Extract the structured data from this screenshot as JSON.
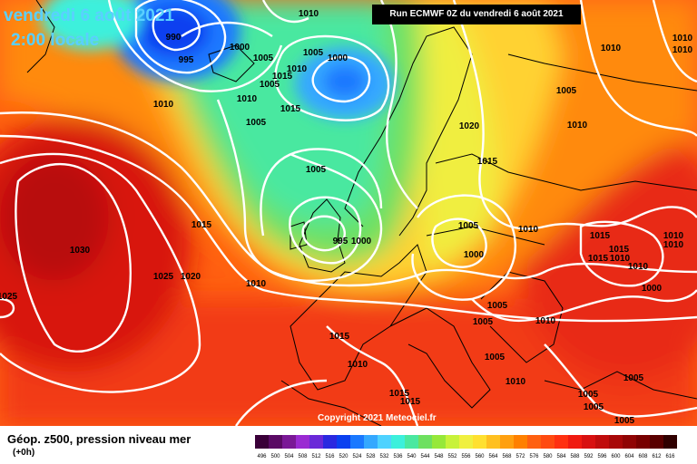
{
  "header": {
    "date": "vendredi 6 août 2021",
    "time": "2:00 locale",
    "run": "Run ECMWF 0Z du vendredi 6 août 2021"
  },
  "copyright": "Copyright 2021 Meteociel.fr",
  "legend": {
    "title": "Géop. z500, pression niveau mer",
    "sub": "(+0h)",
    "ticks": [
      "496",
      "500",
      "504",
      "508",
      "512",
      "516",
      "520",
      "524",
      "528",
      "532",
      "536",
      "540",
      "544",
      "548",
      "552",
      "556",
      "560",
      "564",
      "568",
      "572",
      "576",
      "580",
      "584",
      "588",
      "592",
      "596",
      "600",
      "604",
      "608",
      "612",
      "616"
    ],
    "colors": [
      "#3a0038",
      "#5a0a64",
      "#7a1896",
      "#9a2ad2",
      "#6a28d8",
      "#2a28e0",
      "#0a40f0",
      "#1a78ff",
      "#34a8ff",
      "#4ed2ff",
      "#3cf0dc",
      "#4ae8a0",
      "#6ee060",
      "#96e83a",
      "#c8f23a",
      "#f0f040",
      "#ffe030",
      "#ffc020",
      "#ffa010",
      "#ff8000",
      "#ff6010",
      "#ff4a10",
      "#ff3010",
      "#f01a10",
      "#d81010",
      "#c00c0c",
      "#a80808",
      "#900404",
      "#780000",
      "#5a0000",
      "#300000"
    ]
  },
  "isobars": [
    {
      "label": "1010"
    },
    {
      "label": "990"
    },
    {
      "label": "995"
    },
    {
      "label": "1000"
    },
    {
      "label": "1005"
    },
    {
      "label": "1015"
    },
    {
      "label": "1000"
    },
    {
      "label": "1005"
    },
    {
      "label": "1010"
    },
    {
      "label": "1010"
    },
    {
      "label": "1005"
    },
    {
      "label": "1010"
    },
    {
      "label": "1015"
    },
    {
      "label": "1020"
    },
    {
      "label": "1005"
    },
    {
      "label": "1015"
    },
    {
      "label": "995"
    },
    {
      "label": "1000"
    },
    {
      "label": "1005"
    },
    {
      "label": "1000"
    },
    {
      "label": "1010"
    },
    {
      "label": "1030"
    },
    {
      "label": "1025"
    },
    {
      "label": "1020"
    },
    {
      "label": "1010"
    },
    {
      "label": "1025"
    },
    {
      "label": "1015"
    },
    {
      "label": "1005"
    },
    {
      "label": "1005"
    },
    {
      "label": "1010"
    },
    {
      "label": "1015"
    },
    {
      "label": "1015"
    },
    {
      "label": "1015"
    },
    {
      "label": "1010"
    },
    {
      "label": "1010"
    },
    {
      "label": "1000"
    },
    {
      "label": "1010"
    },
    {
      "label": "1015"
    },
    {
      "label": "1005"
    },
    {
      "label": "1010"
    },
    {
      "label": "1005"
    },
    {
      "label": "1010"
    },
    {
      "label": "1005"
    },
    {
      "label": "1010"
    },
    {
      "label": "1015"
    },
    {
      "label": "1015"
    },
    {
      "label": "1005"
    },
    {
      "label": "1005"
    },
    {
      "label": "1005"
    },
    {
      "label": "1005"
    },
    {
      "label": "1010"
    },
    {
      "label": "1010"
    },
    {
      "label": "1010"
    },
    {
      "label": "1010"
    }
  ]
}
